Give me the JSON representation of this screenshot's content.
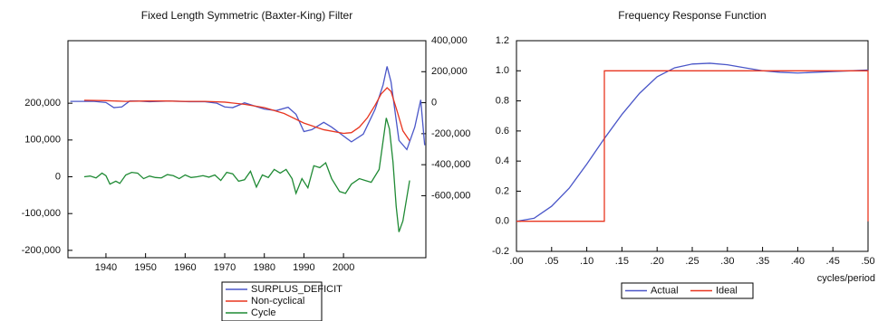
{
  "chart_data": [
    {
      "type": "line",
      "title": "Fixed Length Symmetric (Baxter-King) Filter",
      "xlim": [
        1930.4,
        2020.8
      ],
      "xticks": [
        1940,
        1950,
        1960,
        1970,
        1980,
        1990,
        2000
      ],
      "ylim": [
        -220000,
        370000
      ],
      "yticks": [
        {
          "value": 200000,
          "label": "200,000"
        },
        {
          "value": 100000,
          "label": "100,000"
        },
        0,
        {
          "value": -100000,
          "label": "-100,000"
        },
        {
          "value": -200000,
          "label": "-200,000"
        }
      ],
      "y2lim": [
        -1000000,
        400000
      ],
      "y2ticks": [
        {
          "value": 400000,
          "label": "400,000"
        },
        {
          "value": 200000,
          "label": "200,000"
        },
        0,
        {
          "value": -200000,
          "label": "-200,000"
        },
        {
          "value": -400000,
          "label": "-400,000"
        },
        {
          "value": -600000,
          "label": "-600,000"
        }
      ],
      "legend": "bottom",
      "series": [
        {
          "name": "SURPLUS_DEFICIT",
          "color": "#4a56c8",
          "x": [
            1931,
            1937,
            1940,
            1942,
            1944,
            1946,
            1948,
            1951,
            1956,
            1961,
            1965,
            1968,
            1970,
            1972,
            1975,
            1980,
            1983,
            1986,
            1988,
            1990,
            1992,
            1995,
            1997,
            2000,
            2002,
            2005,
            2008,
            2010,
            2011,
            2012,
            2014,
            2016,
            2018,
            2019.5,
            2020.5
          ],
          "values": [
            205000,
            205000,
            202000,
            188000,
            190000,
            206000,
            206000,
            204000,
            206000,
            204000,
            204000,
            200000,
            190000,
            188000,
            201000,
            184000,
            180000,
            189000,
            170000,
            123000,
            128000,
            148000,
            135000,
            111000,
            95000,
            116000,
            184000,
            250000,
            300000,
            258000,
            99000,
            74000,
            135000,
            209000,
            86000
          ]
        },
        {
          "name": "Non-cyclical",
          "color": "#e8351f",
          "x": [
            1934.5,
            1940,
            1945,
            1950,
            1955,
            1960,
            1965,
            1970,
            1975,
            1980,
            1985,
            1990,
            1995,
            2000,
            2002,
            2004,
            2006,
            2008,
            2009.5,
            2011,
            2012,
            2013.5,
            2015,
            2016.7
          ],
          "values": [
            208000,
            207000,
            205000,
            206000,
            206000,
            205000,
            205000,
            203000,
            197000,
            188000,
            172000,
            146000,
            128000,
            118000,
            120000,
            135000,
            160000,
            195000,
            225000,
            242000,
            232000,
            180000,
            125000,
            98000
          ]
        },
        {
          "name": "Cycle",
          "color": "#1f8a34",
          "x": [
            1934.5,
            1936,
            1937.5,
            1939,
            1940,
            1941,
            1942.5,
            1943.5,
            1945,
            1946.5,
            1948,
            1949.5,
            1951,
            1952.5,
            1954,
            1955.5,
            1957,
            1958.5,
            1960,
            1961.5,
            1963,
            1964.5,
            1966,
            1967.5,
            1969,
            1970.5,
            1972,
            1973.5,
            1975,
            1976.5,
            1978,
            1979.5,
            1981,
            1982.5,
            1984,
            1985.5,
            1987,
            1988,
            1989.5,
            1991,
            1992.5,
            1994,
            1995.5,
            1997,
            1999,
            2000.5,
            2002,
            2004,
            2005.5,
            2007,
            2009,
            2010.8,
            2011.6,
            2012.5,
            2013.3,
            2014,
            2015,
            2016.7
          ],
          "values": [
            0,
            2000,
            -3000,
            10000,
            3000,
            -20000,
            -12000,
            -18000,
            5000,
            12000,
            10000,
            -5000,
            2000,
            -2000,
            -3000,
            6000,
            3000,
            -5000,
            5000,
            -2000,
            0,
            3000,
            -1000,
            5000,
            -10000,
            12000,
            8000,
            -12000,
            -8000,
            15000,
            -28000,
            5000,
            -2000,
            20000,
            10000,
            20000,
            -5000,
            -45000,
            -5000,
            -30000,
            30000,
            25000,
            38000,
            -5000,
            -40000,
            -45000,
            -20000,
            -5000,
            -10000,
            -15000,
            20000,
            160000,
            130000,
            40000,
            -80000,
            -150000,
            -120000,
            -10000
          ]
        }
      ]
    },
    {
      "type": "line",
      "title": "Frequency Response Function",
      "x_label": "cycles/period",
      "xlim": [
        0,
        0.5
      ],
      "xticks": [
        {
          "value": 0,
          "label": ".00"
        },
        {
          "value": 0.05,
          "label": ".05"
        },
        {
          "value": 0.1,
          "label": ".10"
        },
        {
          "value": 0.15,
          "label": ".15"
        },
        {
          "value": 0.2,
          "label": ".20"
        },
        {
          "value": 0.25,
          "label": ".25"
        },
        {
          "value": 0.3,
          "label": ".30"
        },
        {
          "value": 0.35,
          "label": ".35"
        },
        {
          "value": 0.4,
          "label": ".40"
        },
        {
          "value": 0.45,
          "label": ".45"
        },
        {
          "value": 0.5,
          "label": ".50"
        }
      ],
      "ylim": [
        -0.2,
        1.2
      ],
      "yticks": [
        1.2,
        {
          "value": 1,
          "label": "1.0"
        },
        0.8,
        0.6,
        0.4,
        0.2,
        {
          "value": 0,
          "label": "0.0"
        },
        -0.2
      ],
      "legend": "bottom",
      "series": [
        {
          "name": "Actual",
          "color": "#4a56c8",
          "x": [
            0,
            0.025,
            0.05,
            0.075,
            0.1,
            0.125,
            0.15,
            0.175,
            0.2,
            0.225,
            0.25,
            0.275,
            0.3,
            0.325,
            0.35,
            0.375,
            0.4,
            0.425,
            0.45,
            0.475,
            0.5
          ],
          "values": [
            0,
            0.02,
            0.1,
            0.22,
            0.38,
            0.55,
            0.71,
            0.85,
            0.96,
            1.02,
            1.045,
            1.05,
            1.04,
            1.02,
            1.0,
            0.99,
            0.985,
            0.99,
            0.995,
            1.0,
            1.005
          ]
        },
        {
          "name": "Ideal",
          "color": "#e8351f",
          "x": [
            0,
            0.125,
            0.125,
            0.5,
            0.5
          ],
          "values": [
            0,
            0,
            1,
            1,
            0
          ]
        }
      ]
    }
  ]
}
